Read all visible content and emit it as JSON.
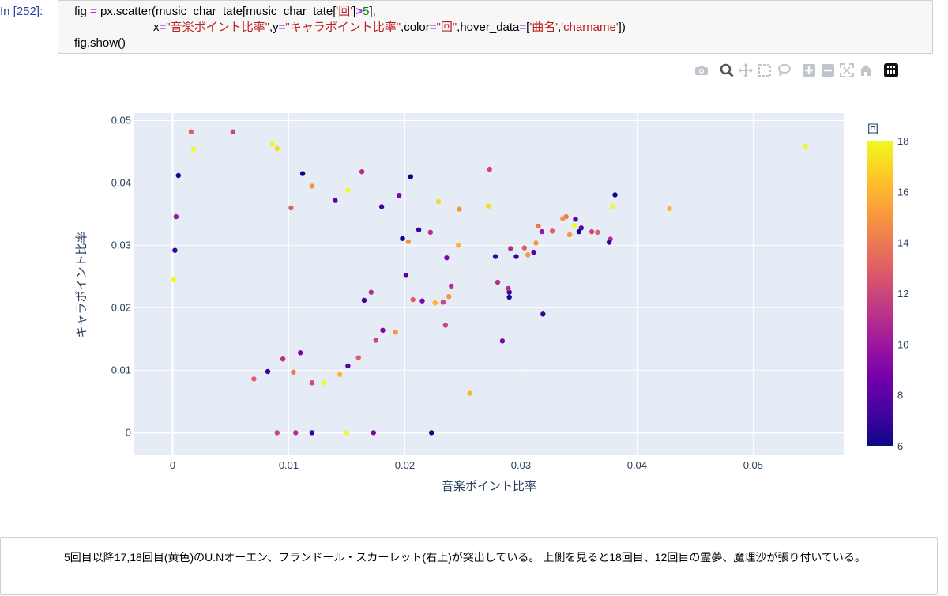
{
  "cell": {
    "prompt": "In [252]:",
    "collapse_glyph": "▾",
    "code_line3": "fig.show()"
  },
  "modebar": {
    "buttons": [
      "camera-icon",
      "zoom-icon",
      "pan-icon",
      "box-select-icon",
      "lasso-icon",
      "zoom-in-icon",
      "zoom-out-icon",
      "autoscale-icon",
      "reset-axes-icon",
      "plotly-logo-icon"
    ],
    "active": "zoom-icon"
  },
  "markdown": {
    "text": "5回目以降17,18回目(黄色)のU.Nオーエン、フランドール・スカーレット(右上)が突出している。 上側を見ると18回目、12回目の霊夢、魔理沙が張り付いている。"
  },
  "chart_data": {
    "type": "scatter",
    "xlabel": "音楽ポイント比率",
    "ylabel": "キャラポイント比率",
    "xlim": [
      -0.0033,
      0.0578
    ],
    "ylim": [
      -0.0035,
      0.0512
    ],
    "x_ticks": [
      0,
      0.01,
      0.02,
      0.03,
      0.04,
      0.05
    ],
    "x_tick_labels": [
      "0",
      "0.01",
      "0.02",
      "0.03",
      "0.04",
      "0.05"
    ],
    "y_ticks": [
      0,
      0.01,
      0.02,
      0.03,
      0.04,
      0.05
    ],
    "y_tick_labels": [
      "0",
      "0.01",
      "0.02",
      "0.03",
      "0.04",
      "0.05"
    ],
    "grid": true,
    "background": "#e5ecf6",
    "colorbar": {
      "title": "回",
      "range": [
        6,
        18
      ],
      "ticks": [
        6,
        8,
        10,
        12,
        14,
        16,
        18
      ],
      "colorscale": [
        "#0d0887",
        "#46039f",
        "#7201a8",
        "#9c179e",
        "#bd3786",
        "#d8576b",
        "#ed7953",
        "#fb9f3a",
        "#fdca26",
        "#f0f921"
      ]
    },
    "color_field": "回",
    "points": [
      [
        0.0545,
        0.0459,
        18
      ],
      [
        0.0428,
        0.0359,
        16
      ],
      [
        0.0381,
        0.0381,
        6
      ],
      [
        0.0379,
        0.0362,
        18
      ],
      [
        0.0377,
        0.031,
        11
      ],
      [
        0.0376,
        0.0305,
        7
      ],
      [
        0.0366,
        0.0321,
        13
      ],
      [
        0.0361,
        0.0322,
        12
      ],
      [
        0.0352,
        0.0328,
        8
      ],
      [
        0.035,
        0.0322,
        6
      ],
      [
        0.0347,
        0.0342,
        8
      ],
      [
        0.0346,
        0.0332,
        18
      ],
      [
        0.0342,
        0.0317,
        15
      ],
      [
        0.0339,
        0.0346,
        14
      ],
      [
        0.0336,
        0.0343,
        15
      ],
      [
        0.0327,
        0.0323,
        13
      ],
      [
        0.0319,
        0.019,
        7
      ],
      [
        0.0318,
        0.0322,
        10
      ],
      [
        0.0315,
        0.0331,
        14
      ],
      [
        0.0313,
        0.0304,
        15
      ],
      [
        0.0311,
        0.0289,
        8
      ],
      [
        0.0306,
        0.0285,
        15
      ],
      [
        0.0303,
        0.0296,
        13
      ],
      [
        0.0296,
        0.0282,
        7
      ],
      [
        0.0291,
        0.0295,
        11
      ],
      [
        0.029,
        0.0225,
        7
      ],
      [
        0.029,
        0.0217,
        6
      ],
      [
        0.0289,
        0.0231,
        11
      ],
      [
        0.0284,
        0.0147,
        9
      ],
      [
        0.028,
        0.0241,
        11
      ],
      [
        0.0278,
        0.0282,
        7
      ],
      [
        0.0273,
        0.0422,
        12
      ],
      [
        0.0272,
        0.0363,
        17
      ],
      [
        0.0256,
        0.0063,
        16
      ],
      [
        0.0247,
        0.0358,
        15
      ],
      [
        0.0246,
        0.03,
        16
      ],
      [
        0.024,
        0.0235,
        11
      ],
      [
        0.0236,
        0.028,
        9
      ],
      [
        0.0235,
        0.0172,
        12
      ],
      [
        0.0238,
        0.0218,
        15
      ],
      [
        0.0233,
        0.0209,
        12
      ],
      [
        0.0229,
        0.037,
        17
      ],
      [
        0.0226,
        0.0208,
        16
      ],
      [
        0.0222,
        0.0321,
        11
      ],
      [
        0.0215,
        0.0211,
        9
      ],
      [
        0.0212,
        0.0325,
        7
      ],
      [
        0.0207,
        0.0213,
        13
      ],
      [
        0.0203,
        0.0306,
        15
      ],
      [
        0.0201,
        0.0252,
        8
      ],
      [
        0.0198,
        0.0311,
        6
      ],
      [
        0.0192,
        0.0161,
        15
      ],
      [
        0.0181,
        0.0164,
        9
      ],
      [
        0.0175,
        0.0148,
        12
      ],
      [
        0.0171,
        0.0225,
        11
      ],
      [
        0.0165,
        0.0212,
        7
      ],
      [
        0.016,
        0.012,
        13
      ],
      [
        0.0151,
        0.0107,
        8
      ],
      [
        0.0144,
        0.0093,
        16
      ],
      [
        0.013,
        0.008,
        18
      ],
      [
        0.012,
        0.008,
        12
      ],
      [
        0.011,
        0.0128,
        9
      ],
      [
        0.0104,
        0.0097,
        14
      ],
      [
        0.0095,
        0.0118,
        11
      ],
      [
        0.0082,
        0.0098,
        7
      ],
      [
        0.007,
        0.0086,
        13
      ],
      [
        0.0205,
        0.041,
        6
      ],
      [
        0.0195,
        0.038,
        9
      ],
      [
        0.018,
        0.0362,
        7
      ],
      [
        0.0163,
        0.0418,
        11
      ],
      [
        0.0151,
        0.0388,
        18
      ],
      [
        0.014,
        0.0372,
        8
      ],
      [
        0.012,
        0.0395,
        15
      ],
      [
        0.0112,
        0.0415,
        6
      ],
      [
        0.0102,
        0.036,
        13
      ],
      [
        0.009,
        0.0455,
        17
      ],
      [
        0.0086,
        0.0462,
        18
      ],
      [
        0.0052,
        0.0482,
        12
      ],
      [
        0.0016,
        0.0482,
        13
      ],
      [
        0.0018,
        0.0454,
        18
      ],
      [
        0.0005,
        0.0412,
        6
      ],
      [
        0.0003,
        0.0346,
        10
      ],
      [
        0.0002,
        0.0292,
        7
      ],
      [
        0.0001,
        0.0245,
        18
      ],
      [
        0.0223,
        0.0,
        6
      ],
      [
        0.0173,
        0.0,
        9
      ],
      [
        0.012,
        0.0,
        7
      ],
      [
        0.009,
        0.0,
        12
      ],
      [
        0.015,
        0.0,
        18
      ],
      [
        0.0106,
        0.0,
        11
      ]
    ]
  }
}
